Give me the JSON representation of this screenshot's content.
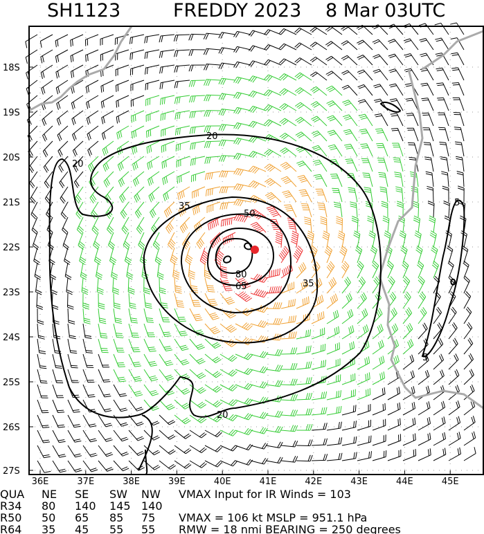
{
  "header": {
    "storm_id": "SH1123",
    "storm_name": "FREDDY 2023",
    "time": "8 Mar 03UTC"
  },
  "map": {
    "lat_labels": [
      "18S",
      "19S",
      "20S",
      "21S",
      "22S",
      "23S",
      "24S",
      "25S",
      "26S",
      "27S"
    ],
    "lon_labels": [
      "36E",
      "37E",
      "38E",
      "39E",
      "40E",
      "41E",
      "42E",
      "43E",
      "44E",
      "45E"
    ],
    "contour_labels": [
      "20",
      "20",
      "20",
      "35",
      "35",
      "50",
      "65",
      "80",
      "5",
      "5"
    ]
  },
  "footer": {
    "rows": [
      [
        "QUA",
        "NE",
        "SE",
        "SW",
        "NW"
      ],
      [
        "R34",
        "80",
        "140",
        "145",
        "140"
      ],
      [
        "R50",
        "50",
        "65",
        "85",
        "75"
      ],
      [
        "R64",
        "35",
        "45",
        "55",
        "55"
      ]
    ],
    "vmax_input": "VMAX Input for IR Winds =  103",
    "vmax_mslp": "VMAX =  106 kt MSLP =  951.1 hPa",
    "rmw_bearing": "RMW =  18 nmi BEARING =  250 degrees"
  }
}
